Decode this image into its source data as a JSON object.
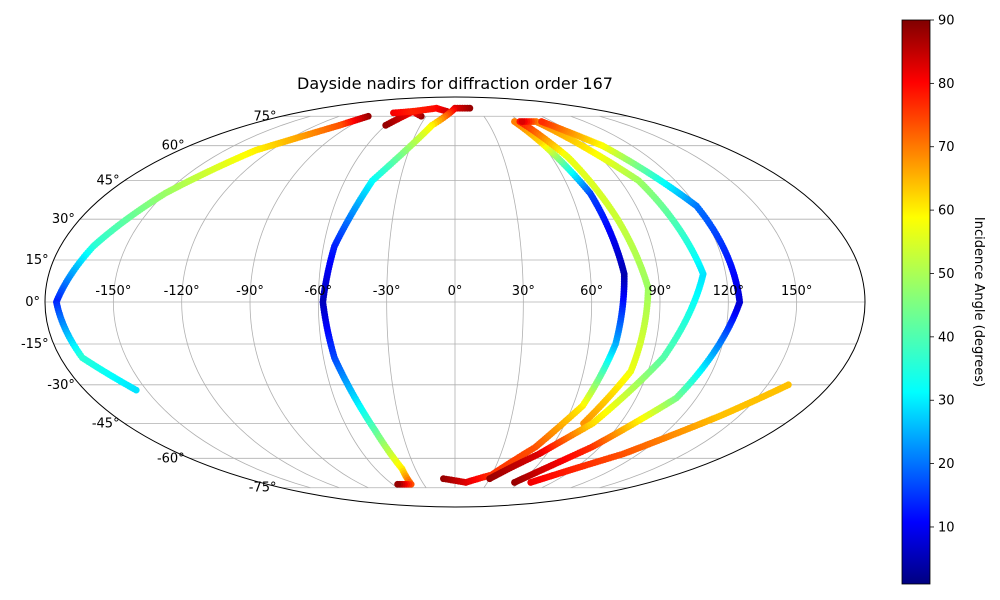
{
  "chart_data": {
    "type": "scatter",
    "projection": "mollweide",
    "title": "Dayside nadirs for diffraction order 167",
    "grid": true,
    "longitude_ticks": [
      "-150°",
      "-120°",
      "-90°",
      "-60°",
      "-30°",
      "0°",
      "30°",
      "60°",
      "90°",
      "120°",
      "150°"
    ],
    "longitude_tick_values": [
      -150,
      -120,
      -90,
      -60,
      -30,
      0,
      30,
      60,
      90,
      120,
      150
    ],
    "latitude_ticks": [
      "75°",
      "60°",
      "45°",
      "30°",
      "15°",
      "0°",
      "-15°",
      "-30°",
      "-45°",
      "-60°",
      "-75°"
    ],
    "latitude_tick_values": [
      75,
      60,
      45,
      30,
      15,
      0,
      -15,
      -30,
      -45,
      -60,
      -75
    ],
    "colorbar": {
      "label": "Incidence Angle (degrees)",
      "colormap": "jet",
      "range": [
        1,
        90
      ],
      "ticks": [
        "10",
        "20",
        "30",
        "40",
        "50",
        "60",
        "70",
        "80",
        "90"
      ],
      "tick_values": [
        10,
        20,
        30,
        40,
        50,
        60,
        70,
        80,
        90
      ]
    },
    "tracks": [
      {
        "points": [
          [
            -90,
            75,
            88
          ],
          [
            -100,
            70,
            72
          ],
          [
            -130,
            58,
            58
          ],
          [
            -150,
            40,
            48
          ],
          [
            -165,
            20,
            38
          ],
          [
            -175,
            0,
            15
          ],
          [
            -170,
            -20,
            38
          ],
          [
            -155,
            -32,
            32
          ]
        ]
      },
      {
        "points": [
          [
            -35,
            75,
            88
          ],
          [
            -50,
            78,
            78
          ],
          [
            -60,
            70,
            88
          ]
        ]
      },
      {
        "points": [
          [
            -70,
            77,
            80
          ],
          [
            -50,
            78,
            76
          ],
          [
            -25,
            80,
            78
          ],
          [
            -10,
            78,
            82
          ]
        ]
      },
      {
        "points": [
          [
            20,
            80,
            88
          ],
          [
            0,
            80,
            82
          ],
          [
            -20,
            70,
            58
          ],
          [
            -45,
            45,
            35
          ],
          [
            -55,
            20,
            15
          ],
          [
            -58,
            0,
            6
          ],
          [
            -55,
            -20,
            18
          ],
          [
            -45,
            -48,
            42
          ],
          [
            -40,
            -65,
            58
          ],
          [
            -42,
            -73,
            72
          ],
          [
            -55,
            -73,
            88
          ]
        ]
      },
      {
        "points": [
          [
            -10,
            -70,
            88
          ],
          [
            10,
            -72,
            82
          ],
          [
            30,
            -68,
            75
          ],
          [
            50,
            -55,
            72
          ],
          [
            65,
            -38,
            58
          ],
          [
            72,
            -15,
            28
          ],
          [
            75,
            10,
            5
          ],
          [
            70,
            40,
            18
          ],
          [
            60,
            62,
            60
          ],
          [
            55,
            72,
            68
          ]
        ]
      },
      {
        "points": [
          [
            60,
            72,
            78
          ],
          [
            70,
            55,
            55
          ],
          [
            78,
            30,
            52
          ],
          [
            85,
            5,
            48
          ],
          [
            82,
            -25,
            55
          ],
          [
            70,
            -45,
            66
          ]
        ]
      },
      {
        "points": [
          [
            30,
            -70,
            88
          ],
          [
            55,
            -58,
            82
          ],
          [
            75,
            -45,
            60
          ],
          [
            95,
            -20,
            42
          ],
          [
            110,
            10,
            32
          ],
          [
            100,
            45,
            48
          ],
          [
            75,
            72,
            68
          ],
          [
            62,
            72,
            82
          ]
        ]
      },
      {
        "points": [
          [
            55,
            -72,
            88
          ],
          [
            85,
            -55,
            75
          ],
          [
            110,
            -35,
            45
          ],
          [
            125,
            0,
            8
          ],
          [
            120,
            35,
            22
          ],
          [
            100,
            60,
            56
          ],
          [
            80,
            72,
            75
          ]
        ]
      },
      {
        "points": [
          [
            70,
            -72,
            80
          ],
          [
            110,
            -58,
            72
          ],
          [
            140,
            -42,
            62
          ],
          [
            160,
            -30,
            62
          ]
        ]
      }
    ]
  }
}
